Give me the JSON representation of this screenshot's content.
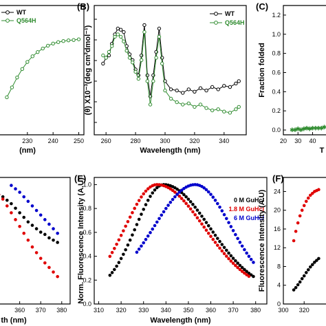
{
  "chart_data": [
    {
      "id": "panel_a_partial",
      "type": "line",
      "panel_letter": "",
      "xlabel": "(nm)",
      "ylabel": "",
      "x_ticks": [
        "230",
        "240",
        "250"
      ],
      "legend": [
        "WT",
        "Q564H"
      ],
      "series": [
        {
          "name": "Q564H",
          "color": "#2e8b2e",
          "x": [
            222,
            224,
            226,
            228,
            230,
            232,
            234,
            236,
            238,
            240,
            242,
            244,
            246,
            248,
            250
          ],
          "y": [
            0.18,
            0.32,
            0.46,
            0.58,
            0.68,
            0.76,
            0.82,
            0.87,
            0.91,
            0.94,
            0.96,
            0.975,
            0.985,
            0.99,
            1.0
          ]
        }
      ]
    },
    {
      "id": "panel_b",
      "type": "line",
      "panel_letter": "(B)",
      "xlabel": "Wavelength (nm)",
      "ylabel": "(θ) X10⁻³(deg cm²dmol⁻¹)",
      "xlim": [
        252,
        355
      ],
      "x_ticks": [
        "260",
        "280",
        "300",
        "320",
        "340"
      ],
      "legend": [
        "WT",
        "Q564H"
      ],
      "series": [
        {
          "name": "WT",
          "color": "#000000",
          "x": [
            258,
            260,
            262,
            264,
            266,
            268,
            270,
            272,
            274,
            276,
            278,
            280,
            282,
            284,
            286,
            288,
            290,
            292,
            294,
            296,
            298,
            300,
            304,
            308,
            312,
            316,
            320,
            324,
            328,
            332,
            336,
            340,
            344,
            348,
            350
          ],
          "y": [
            0.55,
            0.6,
            0.62,
            0.72,
            0.8,
            0.85,
            0.84,
            0.82,
            0.7,
            0.63,
            0.58,
            0.5,
            0.45,
            0.62,
            0.88,
            0.45,
            0.27,
            0.45,
            0.65,
            0.85,
            0.6,
            0.4,
            0.33,
            0.32,
            0.3,
            0.33,
            0.31,
            0.34,
            0.32,
            0.35,
            0.33,
            0.36,
            0.35,
            0.38,
            0.4
          ]
        },
        {
          "name": "Q564H",
          "color": "#2e8b2e",
          "x": [
            258,
            260,
            262,
            264,
            266,
            268,
            270,
            272,
            274,
            276,
            278,
            280,
            282,
            284,
            286,
            288,
            290,
            292,
            294,
            296,
            298,
            300,
            304,
            308,
            312,
            316,
            320,
            324,
            328,
            332,
            336,
            340,
            344,
            348,
            350
          ],
          "y": [
            0.62,
            0.6,
            0.65,
            0.7,
            0.78,
            0.8,
            0.78,
            0.74,
            0.66,
            0.6,
            0.56,
            0.48,
            0.42,
            0.58,
            0.82,
            0.4,
            0.2,
            0.4,
            0.6,
            0.78,
            0.55,
            0.32,
            0.25,
            0.22,
            0.2,
            0.21,
            0.18,
            0.2,
            0.17,
            0.15,
            0.16,
            0.14,
            0.13,
            0.16,
            0.18
          ]
        }
      ]
    },
    {
      "id": "panel_c_partial",
      "type": "scatter",
      "panel_letter": "(C)",
      "xlabel": "T",
      "ylabel": "Fraction folded",
      "xlim": [
        20,
        52
      ],
      "ylim": [
        -0.05,
        1.3
      ],
      "x_ticks": [
        "20",
        "30",
        "40"
      ],
      "y_ticks": [
        "0.0",
        "0.2",
        "0.4",
        "0.6",
        "0.8",
        "1.0",
        "1.2"
      ],
      "series": [
        {
          "name": "",
          "color": "#2e8b2e",
          "x": [
            26,
            28,
            30,
            32,
            34,
            36,
            38,
            40,
            42,
            44,
            46,
            48
          ],
          "y": [
            0.0,
            0.0,
            0.01,
            0.0,
            0.01,
            0.02,
            0.01,
            0.02,
            0.02,
            0.02,
            0.02,
            0.03
          ]
        }
      ]
    },
    {
      "id": "panel_d_partial",
      "type": "scatter",
      "panel_letter": "",
      "xlabel": "th (nm)",
      "x_ticks": [
        "360",
        "370",
        "380"
      ],
      "xlim": [
        349,
        384
      ],
      "series": [
        {
          "name": "0 M GuHcl",
          "color": "#000000",
          "x": [
            350,
            352,
            354,
            356,
            358,
            360,
            362,
            364,
            366,
            368,
            370,
            372,
            374,
            376,
            378
          ],
          "y": [
            0.9,
            0.88,
            0.85,
            0.82,
            0.78,
            0.74,
            0.7,
            0.66,
            0.63,
            0.6,
            0.57,
            0.55,
            0.52,
            0.5,
            0.48
          ]
        },
        {
          "name": "1.8 M GuHcl",
          "color": "#e00000",
          "x": [
            350,
            352,
            354,
            356,
            358,
            360,
            362,
            364,
            366,
            368,
            370,
            372,
            374,
            376,
            378
          ],
          "y": [
            0.9,
            0.86,
            0.8,
            0.74,
            0.68,
            0.62,
            0.56,
            0.5,
            0.44,
            0.39,
            0.34,
            0.3,
            0.26,
            0.22,
            0.18
          ]
        },
        {
          "name": "6 M GuHcl",
          "color": "#0000cc",
          "x": [
            356,
            358,
            360,
            362,
            364,
            366,
            368,
            370,
            372,
            374,
            376,
            378
          ],
          "y": [
            0.98,
            0.95,
            0.92,
            0.88,
            0.84,
            0.8,
            0.76,
            0.72,
            0.68,
            0.64,
            0.6,
            0.56
          ]
        }
      ]
    },
    {
      "id": "panel_e",
      "type": "scatter",
      "panel_letter": "(E)",
      "xlabel": "Wavelength (nm)",
      "ylabel": "Norm. Fluorescence Intensity (A.U)",
      "xlim": [
        308,
        385
      ],
      "ylim": [
        0.0,
        1.06
      ],
      "x_ticks": [
        "310",
        "320",
        "330",
        "340",
        "350",
        "360",
        "370",
        "380"
      ],
      "y_ticks": [
        "0.0",
        "0.2",
        "0.4",
        "0.6",
        "0.8",
        "1.0"
      ],
      "legend": [
        "0 M GuHcl",
        "1.8 M GuHcl",
        "6 M GuHcl"
      ],
      "series": [
        {
          "name": "0 M GuHcl",
          "color": "#000000",
          "peak": 339,
          "start": 315,
          "end": 379,
          "wl": 22,
          "wr": 36,
          "base": 0.1
        },
        {
          "name": "1.8 M GuHcl",
          "color": "#e00000",
          "peak": 336,
          "start": 315,
          "end": 377,
          "wl": 25,
          "wr": 37,
          "base": 0.1
        },
        {
          "name": "6 M GuHcl",
          "color": "#0000cc",
          "peak": 353,
          "start": 327,
          "end": 379,
          "wl": 32,
          "wr": 28,
          "base": 0.12
        }
      ]
    },
    {
      "id": "panel_f_partial",
      "type": "scatter",
      "panel_letter": "(F)",
      "xlabel": "",
      "ylabel": "Fluorescence Intensity (A.U)",
      "xlim": [
        300,
        345
      ],
      "ylim": [
        0,
        27
      ],
      "x_ticks": [
        "300",
        "320"
      ],
      "y_ticks": [
        "0",
        "4",
        "8",
        "12",
        "16",
        "20",
        "24"
      ],
      "series": [
        {
          "name": "",
          "color": "#e00000",
          "x": [
            310,
            312,
            314,
            316,
            318,
            320,
            322,
            324,
            326,
            328,
            330,
            332,
            334
          ],
          "y": [
            13.5,
            15.5,
            17.3,
            18.8,
            20.0,
            21.0,
            21.9,
            22.6,
            23.2,
            23.6,
            24.0,
            24.2,
            24.4
          ]
        },
        {
          "name": "",
          "color": "#000000",
          "x": [
            310,
            312,
            314,
            316,
            318,
            320,
            322,
            324,
            326,
            328,
            330,
            332,
            334
          ],
          "y": [
            3.0,
            3.5,
            4.1,
            4.7,
            5.4,
            6.0,
            6.7,
            7.3,
            7.9,
            8.4,
            8.9,
            9.3,
            9.7
          ]
        }
      ]
    }
  ]
}
